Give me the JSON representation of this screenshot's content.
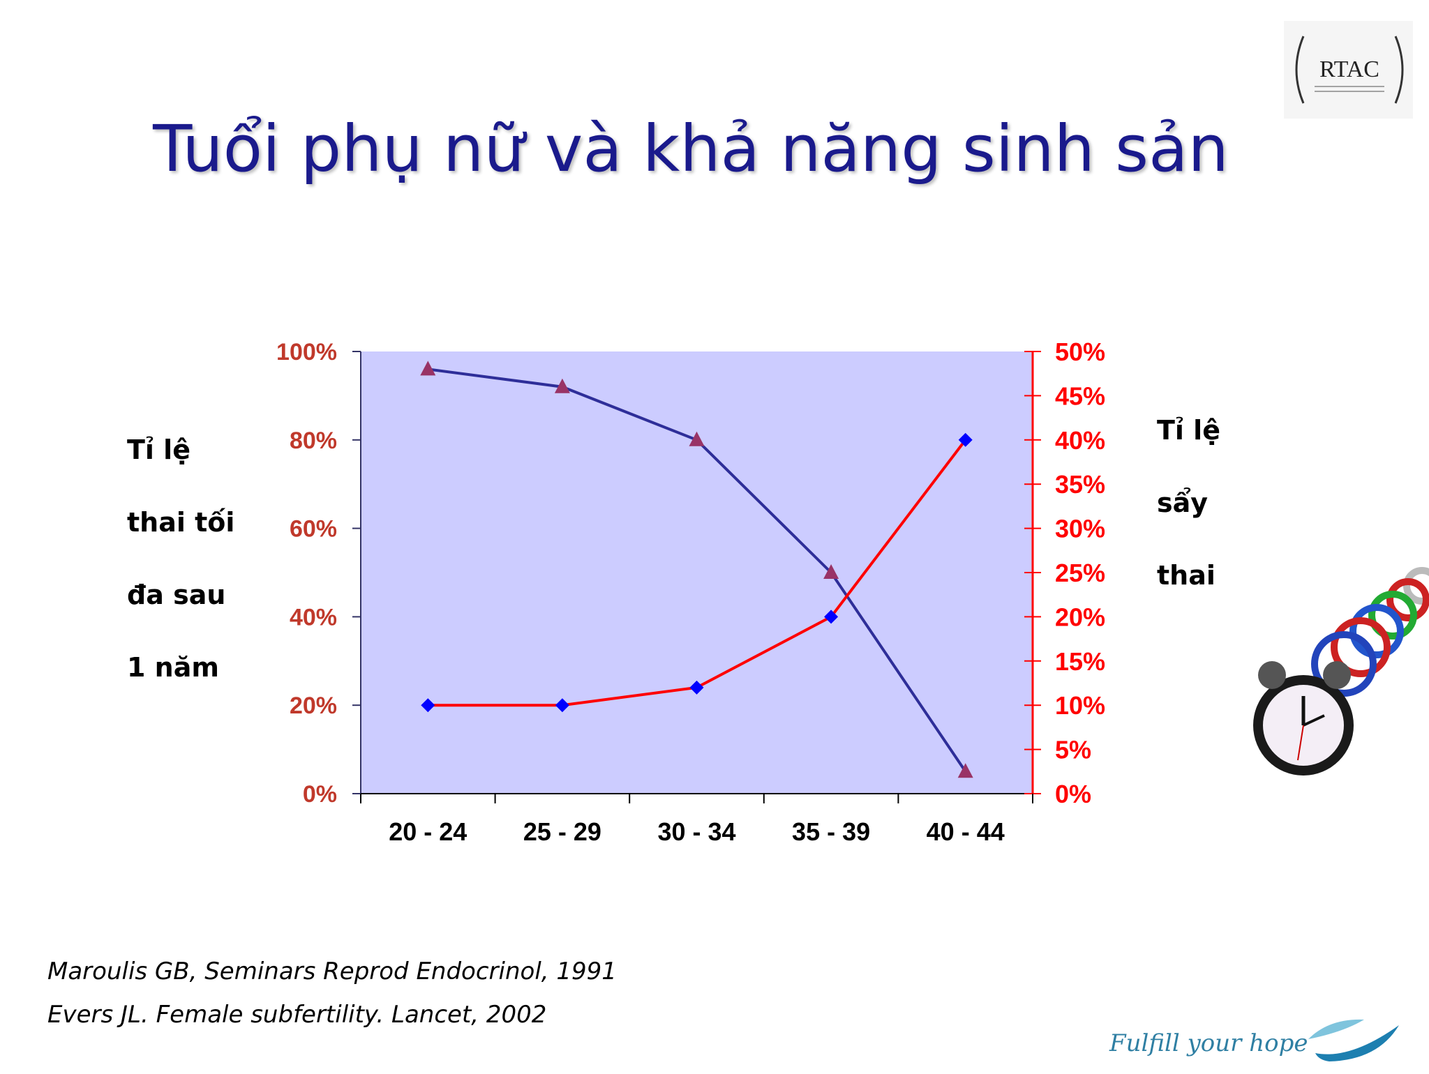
{
  "slide": {
    "title": "Tuổi phụ nữ và khả năng sinh sản",
    "left_axis_title": [
      "Tỉ lệ",
      "thai tối",
      "đa sau",
      "1 năm"
    ],
    "right_axis_title": [
      "Tỉ lệ",
      "sẩy",
      "thai"
    ],
    "references": [
      "Maroulis GB, Seminars Reprod Endocrinol, 1991",
      "Evers JL. Female subfertility. Lancet, 2002"
    ],
    "logo_text": "RTAC",
    "brand_text": "Fulfill your hope"
  },
  "colors": {
    "plot_bg": "#ccccff",
    "fertility_line": "#2e2e99",
    "miscarriage_line": "#ff0000",
    "triangle_marker": "#993366",
    "diamond_marker": "#0000ff",
    "left_tick_text": "#c0392b",
    "right_axis": "#ff0000",
    "title": "#1a1a8c"
  },
  "chart_data": {
    "type": "line",
    "categories": [
      "20 - 24",
      "25 - 29",
      "30 - 34",
      "35 - 39",
      "40 - 44"
    ],
    "y_left": {
      "ticks": [
        "0%",
        "20%",
        "40%",
        "60%",
        "80%",
        "100%"
      ],
      "range": [
        0,
        100
      ]
    },
    "y_right": {
      "ticks": [
        "0%",
        "5%",
        "10%",
        "15%",
        "20%",
        "25%",
        "30%",
        "35%",
        "40%",
        "45%",
        "50%"
      ],
      "range": [
        0,
        50
      ]
    },
    "series": [
      {
        "axis": "left",
        "marker": "triangle",
        "values": [
          96,
          92,
          80,
          50,
          5
        ]
      },
      {
        "axis": "right",
        "marker": "diamond",
        "values": [
          10,
          10,
          12,
          20,
          40
        ]
      }
    ],
    "grid": false,
    "legend": "none"
  }
}
